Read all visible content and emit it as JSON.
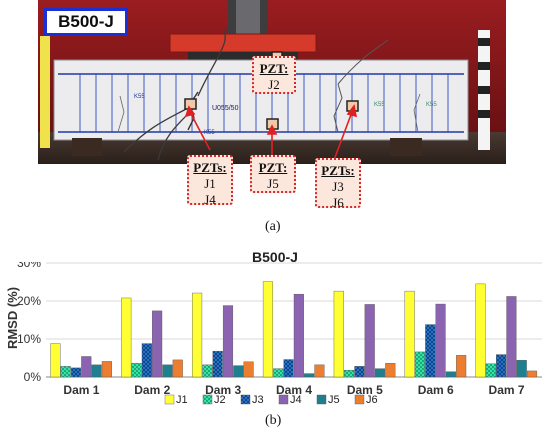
{
  "photo": {
    "badge": "B500-J",
    "callouts": [
      {
        "heading": "PZT:",
        "lines": [
          "J2"
        ]
      },
      {
        "heading": "PZTs:",
        "lines": [
          "J1",
          "J4"
        ]
      },
      {
        "heading": "PZT:",
        "lines": [
          "J5"
        ]
      },
      {
        "heading": "PZTs:",
        "lines": [
          "J3",
          "J6"
        ]
      }
    ],
    "specimen_marks": [
      "U055/50",
      "K55",
      "K55",
      "K55",
      "K55"
    ],
    "colors": {
      "wall": "#8c1a1c",
      "beam": "#e9e9ec",
      "grid": "#1f3aa5",
      "plate": "#d63a2a",
      "arrow": "#e02020",
      "sensor": "#f2c9a8"
    }
  },
  "panel_labels": {
    "a": "(a)",
    "b": "(b)"
  },
  "chart_data": {
    "type": "bar",
    "title": "B500-J",
    "xlabel": "",
    "ylabel": "RMSD (%)",
    "ylim": [
      0,
      30
    ],
    "yticks": [
      0,
      10,
      20,
      30
    ],
    "ytick_labels": [
      "0%",
      "10%",
      "20%",
      "30%"
    ],
    "grid": true,
    "legend": "bottom",
    "categories": [
      "Dam 1",
      "Dam 2",
      "Dam 3",
      "Dam 4",
      "Dam 5",
      "Dam 6",
      "Dam 7"
    ],
    "series": [
      {
        "name": "J1",
        "color": "#ffff33",
        "pattern": "solid",
        "values": [
          8.8,
          20.8,
          22.1,
          25.1,
          22.6,
          22.6,
          24.5
        ]
      },
      {
        "name": "J2",
        "color": "#33e6a8",
        "pattern": "checker",
        "values": [
          2.8,
          3.6,
          3.2,
          2.2,
          1.8,
          6.6,
          3.5
        ]
      },
      {
        "name": "J3",
        "color": "#2c7fd6",
        "pattern": "cross",
        "values": [
          2.4,
          8.8,
          6.8,
          4.6,
          2.8,
          13.8,
          5.9
        ]
      },
      {
        "name": "J4",
        "color": "#8a64b0",
        "pattern": "solid",
        "values": [
          5.4,
          17.4,
          18.8,
          21.8,
          19.1,
          19.2,
          21.2
        ]
      },
      {
        "name": "J5",
        "color": "#207f8f",
        "pattern": "solid",
        "values": [
          3.2,
          3.2,
          3.0,
          0.9,
          2.2,
          1.4,
          4.4
        ]
      },
      {
        "name": "J6",
        "color": "#ed7d31",
        "pattern": "solid",
        "values": [
          4.1,
          4.5,
          4.0,
          3.2,
          3.6,
          5.7,
          1.6
        ]
      }
    ]
  }
}
